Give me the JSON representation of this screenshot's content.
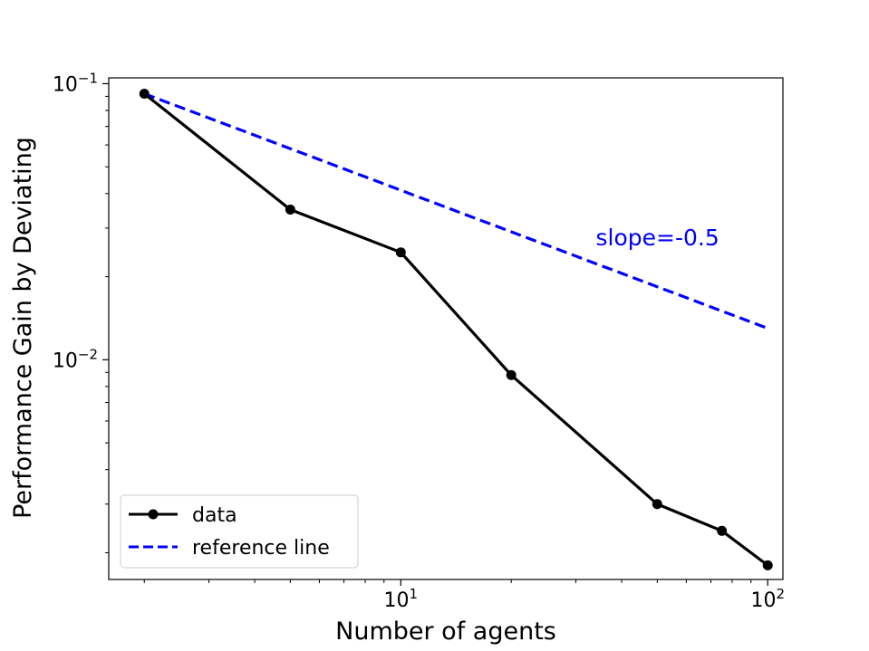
{
  "chart_data": {
    "type": "line",
    "xlabel": "Number of agents",
    "ylabel": "Performance Gain by Deviating",
    "x_scale": "log",
    "y_scale": "log",
    "xlim": [
      1.6,
      110
    ],
    "ylim": [
      0.0016,
      0.105
    ],
    "x_major_ticks": [
      {
        "value": 10,
        "base": "10",
        "exp": "1"
      },
      {
        "value": 100,
        "base": "10",
        "exp": "2"
      }
    ],
    "y_major_ticks": [
      {
        "value": 0.1,
        "base": "10",
        "exp": "−1"
      },
      {
        "value": 0.01,
        "base": "10",
        "exp": "−2"
      }
    ],
    "grid": false,
    "legend_position": "lower-left",
    "series": [
      {
        "name": "data",
        "style": "solid-with-markers",
        "color": "#000000",
        "x": [
          2,
          5,
          10,
          20,
          50,
          75,
          100
        ],
        "y": [
          0.092,
          0.035,
          0.0245,
          0.0088,
          0.003,
          0.0024,
          0.0018
        ]
      },
      {
        "name": "reference line",
        "style": "dashed",
        "color": "#0000ff",
        "x": [
          2,
          100
        ],
        "y": [
          0.092,
          0.013
        ]
      }
    ],
    "annotations": [
      {
        "text": "slope=-0.5",
        "x": 34,
        "y": 0.026,
        "color": "#0000ff"
      }
    ]
  }
}
